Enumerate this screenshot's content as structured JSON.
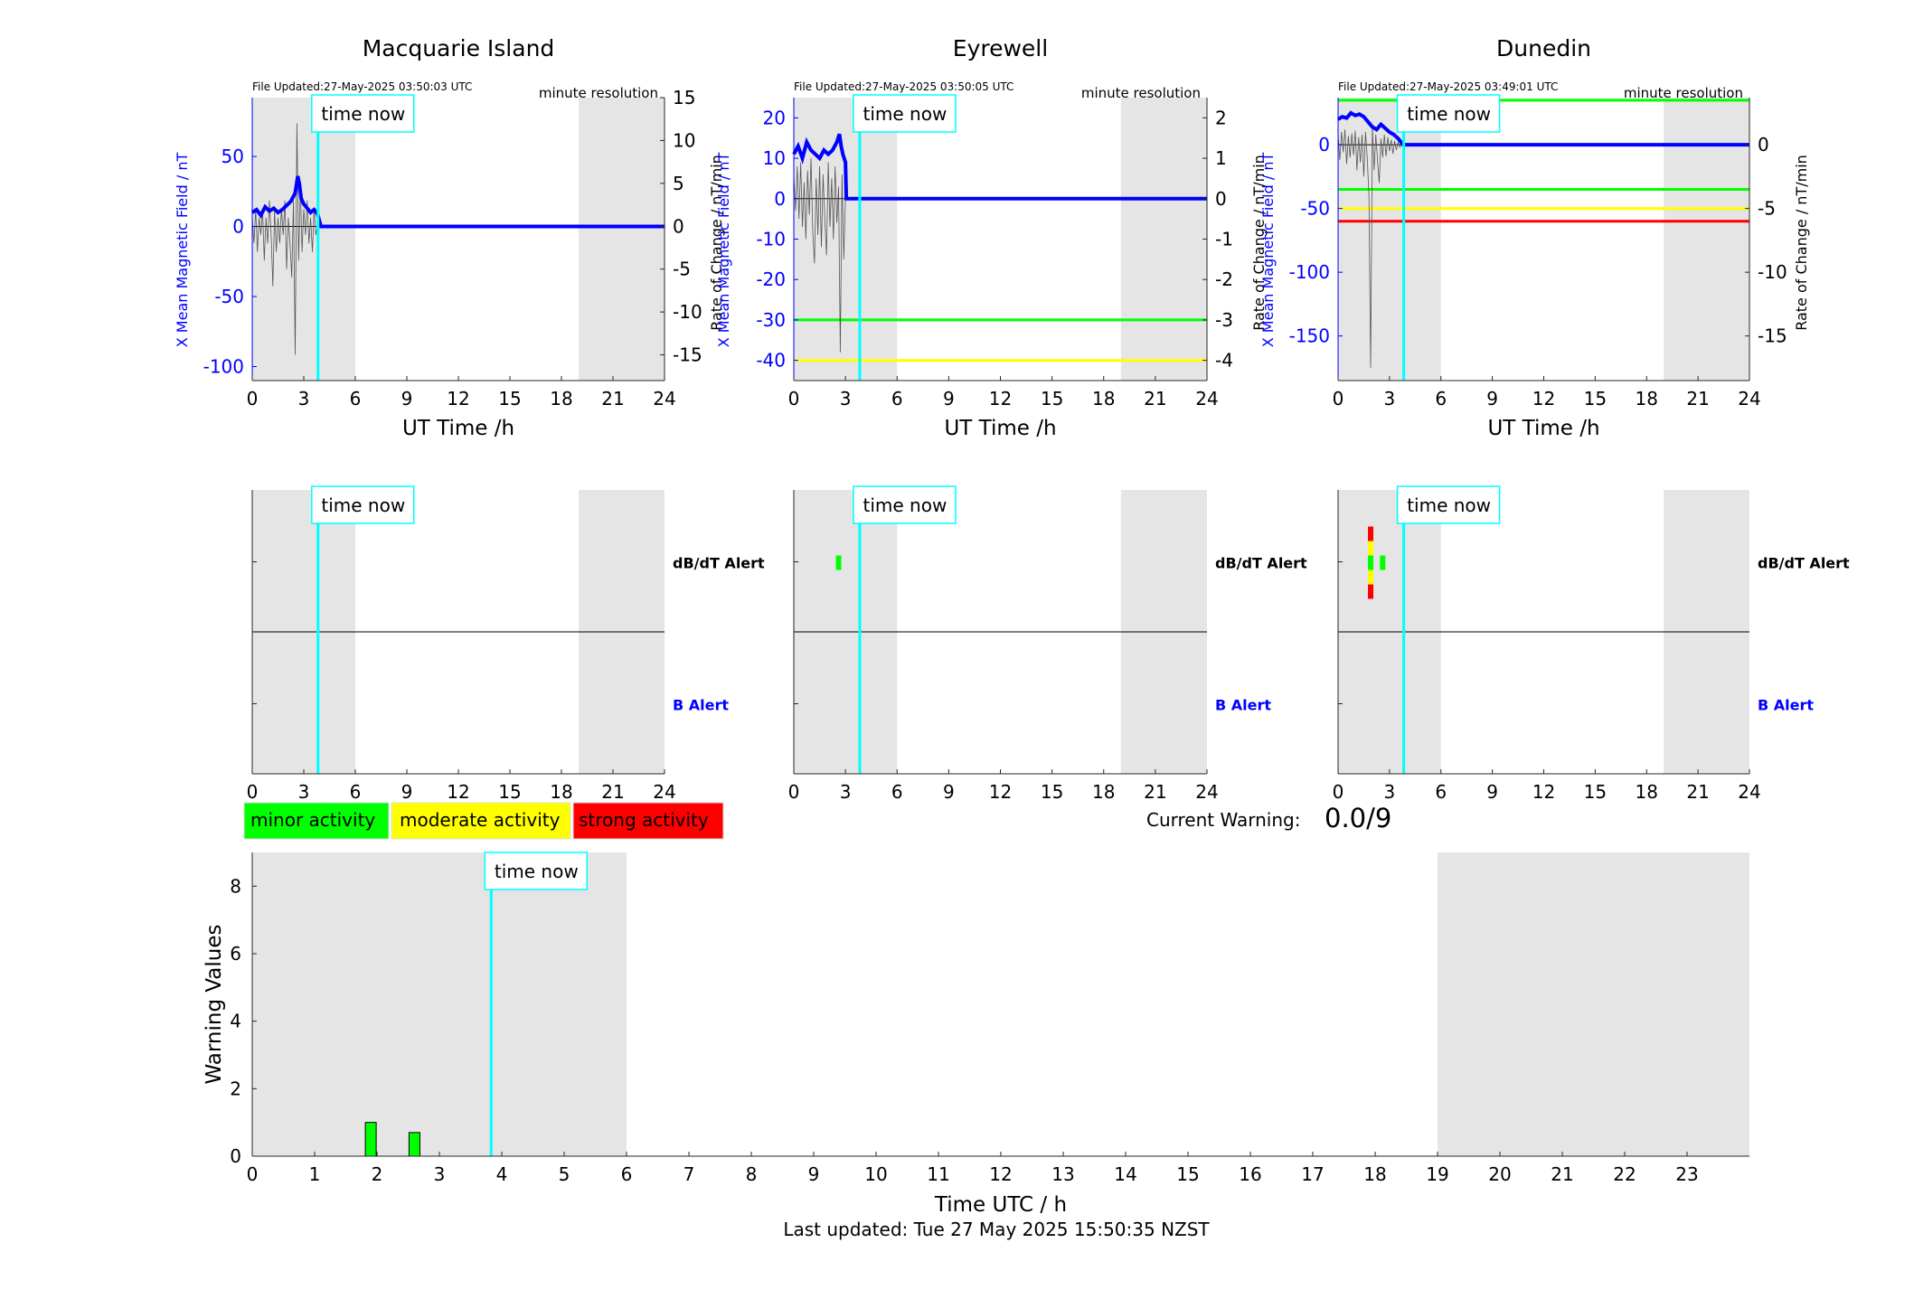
{
  "figure": {
    "footer": "Last updated: Tue 27 May 2025 15:50:35 NZST",
    "current_warning_label": "Current Warning:",
    "current_warning_value": "0.0/9",
    "time_now_label": "time now",
    "legend": [
      {
        "label": "minor activity",
        "color": "#00ff00"
      },
      {
        "label": "moderate activity",
        "color": "#ffff00"
      },
      {
        "label": "strong activity",
        "color": "#ff0000"
      }
    ],
    "colors": {
      "x_field": "#0000ff",
      "time_now": "#00ffff",
      "night_shading": "#e5e5e5",
      "dbdt_trace": "#555555"
    }
  },
  "chart_data": [
    {
      "type": "line",
      "station": "Macquarie Island",
      "title": "Macquarie Island",
      "file_updated": "File Updated:27-May-2025 03:50:03 UTC",
      "resolution_label": "minute resolution",
      "xlabel": "UT Time /h",
      "ylabel_left": "X Mean Magnetic Field / nT",
      "ylabel_right": "Rate of Change / nT/min",
      "xlim": [
        0,
        24
      ],
      "ylim_left": [
        -110,
        92
      ],
      "ylim_right": [
        -18,
        15
      ],
      "xticks": [
        0,
        3,
        6,
        9,
        12,
        15,
        18,
        21,
        24
      ],
      "yticks_left": [
        -100,
        -50,
        0,
        50
      ],
      "yticks_right": [
        -15,
        -10,
        -5,
        0,
        5,
        10,
        15
      ],
      "shaded_hours": [
        [
          0,
          6
        ],
        [
          19,
          24
        ]
      ],
      "time_now": 3.83,
      "thresholds": [],
      "series": [
        {
          "name": "X Mean Magnetic Field",
          "axis": "left",
          "x": [
            0,
            0.25,
            0.5,
            0.75,
            1.0,
            1.25,
            1.5,
            1.75,
            2.0,
            2.25,
            2.5,
            2.65,
            2.75,
            2.85,
            3.0,
            3.2,
            3.4,
            3.6,
            3.8,
            4.0,
            24
          ],
          "y": [
            10,
            12,
            8,
            14,
            11,
            13,
            10,
            12,
            15,
            18,
            24,
            36,
            30,
            20,
            16,
            13,
            10,
            12,
            9,
            0,
            0
          ]
        },
        {
          "name": "Rate of Change",
          "axis": "right",
          "x": [
            0,
            0.1,
            0.2,
            0.3,
            0.4,
            0.5,
            0.6,
            0.7,
            0.8,
            0.9,
            1.0,
            1.1,
            1.2,
            1.3,
            1.4,
            1.5,
            1.6,
            1.7,
            1.8,
            1.9,
            2.0,
            2.1,
            2.2,
            2.3,
            2.4,
            2.5,
            2.6,
            2.7,
            2.8,
            2.9,
            3.0,
            3.1,
            3.2,
            3.3,
            3.4,
            3.5,
            3.6,
            3.7,
            3.8
          ],
          "y": [
            1,
            -2,
            2,
            -3,
            1,
            -1,
            2,
            -4,
            1,
            -2,
            3,
            -1,
            -7,
            2,
            -3,
            1,
            -2,
            2,
            -1,
            3,
            -5,
            1,
            -2,
            -6,
            3,
            -15,
            12,
            -4,
            5,
            -3,
            2,
            -1,
            3,
            -2,
            1,
            -3,
            2,
            -1,
            0
          ]
        }
      ]
    },
    {
      "type": "line",
      "station": "Eyrewell",
      "title": "Eyrewell",
      "file_updated": "File Updated:27-May-2025 03:50:05 UTC",
      "resolution_label": "minute resolution",
      "xlabel": "UT Time /h",
      "ylabel_left": "X Mean Magnetic Field / nT",
      "ylabel_right": "Rate of Change / nT/min",
      "xlim": [
        0,
        24
      ],
      "ylim_left": [
        -45,
        25
      ],
      "ylim_right": [
        -4.5,
        2.5
      ],
      "xticks": [
        0,
        3,
        6,
        9,
        12,
        15,
        18,
        21,
        24
      ],
      "yticks_left": [
        -40,
        -30,
        -20,
        -10,
        0,
        10,
        20
      ],
      "yticks_right": [
        -4,
        -3,
        -2,
        -1,
        0,
        1,
        2
      ],
      "shaded_hours": [
        [
          0,
          6
        ],
        [
          19,
          24
        ]
      ],
      "time_now": 3.83,
      "thresholds": [
        {
          "axis": "right",
          "value": -3,
          "color": "#00ff00"
        },
        {
          "axis": "right",
          "value": -4,
          "color": "#ffff00"
        }
      ],
      "series": [
        {
          "name": "X Mean Magnetic Field",
          "axis": "left",
          "x": [
            0,
            0.25,
            0.5,
            0.75,
            1.0,
            1.25,
            1.5,
            1.75,
            2.0,
            2.25,
            2.5,
            2.65,
            2.75,
            2.85,
            3.0,
            3.05,
            24
          ],
          "y": [
            11,
            13,
            10,
            14,
            12,
            11,
            10,
            12,
            11,
            12,
            14,
            16,
            13,
            11,
            9,
            0,
            0
          ]
        },
        {
          "name": "Rate of Change",
          "axis": "right",
          "x": [
            0,
            0.1,
            0.2,
            0.3,
            0.4,
            0.5,
            0.6,
            0.7,
            0.8,
            0.9,
            1.0,
            1.1,
            1.2,
            1.3,
            1.4,
            1.5,
            1.6,
            1.7,
            1.8,
            1.9,
            2.0,
            2.1,
            2.2,
            2.3,
            2.4,
            2.5,
            2.6,
            2.7,
            2.8,
            2.9,
            3.0
          ],
          "y": [
            0.6,
            -0.3,
            0.8,
            -0.5,
            0.9,
            -0.7,
            0.4,
            -1.0,
            0.7,
            -0.4,
            1.0,
            -0.8,
            -1.6,
            0.5,
            -0.9,
            0.8,
            -1.2,
            0.6,
            -0.5,
            -1.4,
            0.9,
            -0.7,
            0.5,
            -1.0,
            0.8,
            -0.6,
            0.3,
            -3.8,
            0.6,
            -1.5,
            0
          ]
        }
      ]
    },
    {
      "type": "line",
      "station": "Dunedin",
      "title": "Dunedin",
      "file_updated": "File Updated:27-May-2025 03:49:01 UTC",
      "resolution_label": "minute resolution",
      "xlabel": "UT Time /h",
      "ylabel_left": "X Mean Magnetic Field / nT",
      "ylabel_right": "Rate of Change / nT/min",
      "xlim": [
        0,
        24
      ],
      "ylim_left": [
        -185,
        37
      ],
      "ylim_right": [
        -18.5,
        3.7
      ],
      "xticks": [
        0,
        3,
        6,
        9,
        12,
        15,
        18,
        21,
        24
      ],
      "yticks_left": [
        -150,
        -100,
        -50,
        0
      ],
      "yticks_right": [
        -15,
        -10,
        -5,
        0
      ],
      "shaded_hours": [
        [
          0,
          6
        ],
        [
          19,
          24
        ]
      ],
      "time_now": 3.83,
      "thresholds": [
        {
          "axis": "left",
          "value": 35,
          "color": "#00ff00"
        },
        {
          "axis": "left",
          "value": -35,
          "color": "#00ff00"
        },
        {
          "axis": "left",
          "value": -50,
          "color": "#ffff00"
        },
        {
          "axis": "left",
          "value": -60,
          "color": "#ff0000"
        }
      ],
      "series": [
        {
          "name": "X Mean Magnetic Field",
          "axis": "left",
          "x": [
            0,
            0.25,
            0.5,
            0.75,
            1.0,
            1.25,
            1.5,
            1.75,
            2.0,
            2.25,
            2.5,
            2.75,
            3.0,
            3.25,
            3.5,
            3.8,
            24
          ],
          "y": [
            20,
            22,
            21,
            25,
            23,
            24,
            22,
            18,
            14,
            12,
            16,
            13,
            10,
            8,
            5,
            0,
            0
          ]
        },
        {
          "name": "Rate of Change",
          "axis": "right",
          "x": [
            0,
            0.1,
            0.2,
            0.3,
            0.4,
            0.5,
            0.6,
            0.7,
            0.8,
            0.9,
            1.0,
            1.1,
            1.2,
            1.3,
            1.4,
            1.5,
            1.6,
            1.7,
            1.8,
            1.9,
            2.0,
            2.1,
            2.2,
            2.3,
            2.4,
            2.5,
            2.6,
            2.7,
            2.8,
            2.9,
            3.0,
            3.1,
            3.2,
            3.3,
            3.4,
            3.5,
            3.6,
            3.7
          ],
          "y": [
            0.8,
            -1.2,
            1.0,
            -0.6,
            1.2,
            -1.5,
            0.7,
            -1.0,
            0.9,
            -0.8,
            1.1,
            -2.0,
            0.6,
            -1.4,
            0.8,
            -2.5,
            1.0,
            -1.0,
            -4.0,
            -17.5,
            1.5,
            -2.0,
            0.8,
            -1.2,
            -3.0,
            0.5,
            -1.0,
            0.8,
            -0.9,
            0.6,
            -0.5,
            0.4,
            -0.7,
            0.3,
            -0.4,
            0.2,
            -0.2,
            0
          ]
        }
      ]
    },
    {
      "type": "bar",
      "station": "Macquarie Island",
      "panel": "alerts",
      "xlim": [
        0,
        24
      ],
      "xticks": [
        0,
        3,
        6,
        9,
        12,
        15,
        18,
        21,
        24
      ],
      "shaded_hours": [
        [
          0,
          6
        ],
        [
          19,
          24
        ]
      ],
      "time_now": 3.83,
      "row_labels": [
        {
          "label": "dB/dT Alert",
          "color": "#000000"
        },
        {
          "label": "B Alert",
          "color": "#0000ff"
        }
      ],
      "dbdt_alerts": [],
      "b_alerts": []
    },
    {
      "type": "bar",
      "station": "Eyrewell",
      "panel": "alerts",
      "xlim": [
        0,
        24
      ],
      "xticks": [
        0,
        3,
        6,
        9,
        12,
        15,
        18,
        21,
        24
      ],
      "shaded_hours": [
        [
          0,
          6
        ],
        [
          19,
          24
        ]
      ],
      "time_now": 3.83,
      "row_labels": [
        {
          "label": "dB/dT Alert",
          "color": "#000000"
        },
        {
          "label": "B Alert",
          "color": "#0000ff"
        }
      ],
      "dbdt_alerts": [
        {
          "x": 2.6,
          "levels": [
            "minor"
          ]
        }
      ],
      "b_alerts": []
    },
    {
      "type": "bar",
      "station": "Dunedin",
      "panel": "alerts",
      "xlim": [
        0,
        24
      ],
      "xticks": [
        0,
        3,
        6,
        9,
        12,
        15,
        18,
        21,
        24
      ],
      "shaded_hours": [
        [
          0,
          6
        ],
        [
          19,
          24
        ]
      ],
      "time_now": 3.83,
      "row_labels": [
        {
          "label": "dB/dT Alert",
          "color": "#000000"
        },
        {
          "label": "B Alert",
          "color": "#0000ff"
        }
      ],
      "dbdt_alerts": [
        {
          "x": 1.9,
          "levels": [
            "strong",
            "moderate",
            "minor",
            "moderate",
            "strong"
          ]
        },
        {
          "x": 2.6,
          "levels": [
            "minor"
          ]
        }
      ],
      "b_alerts": []
    },
    {
      "type": "bar",
      "panel": "warning",
      "xlabel": "Time UTC / h",
      "ylabel": "Warning Values",
      "xlim": [
        0,
        24
      ],
      "ylim": [
        0,
        9
      ],
      "xticks": [
        0,
        1,
        2,
        3,
        4,
        5,
        6,
        7,
        8,
        9,
        10,
        11,
        12,
        13,
        14,
        15,
        16,
        17,
        18,
        19,
        20,
        21,
        22,
        23
      ],
      "yticks": [
        0,
        2,
        4,
        6,
        8
      ],
      "shaded_hours": [
        [
          0,
          6
        ],
        [
          19,
          24
        ]
      ],
      "time_now": 3.83,
      "bars": [
        {
          "x": 1.9,
          "value": 1.0,
          "color": "#00ff00"
        },
        {
          "x": 2.6,
          "value": 0.7,
          "color": "#00ff00"
        }
      ]
    }
  ]
}
